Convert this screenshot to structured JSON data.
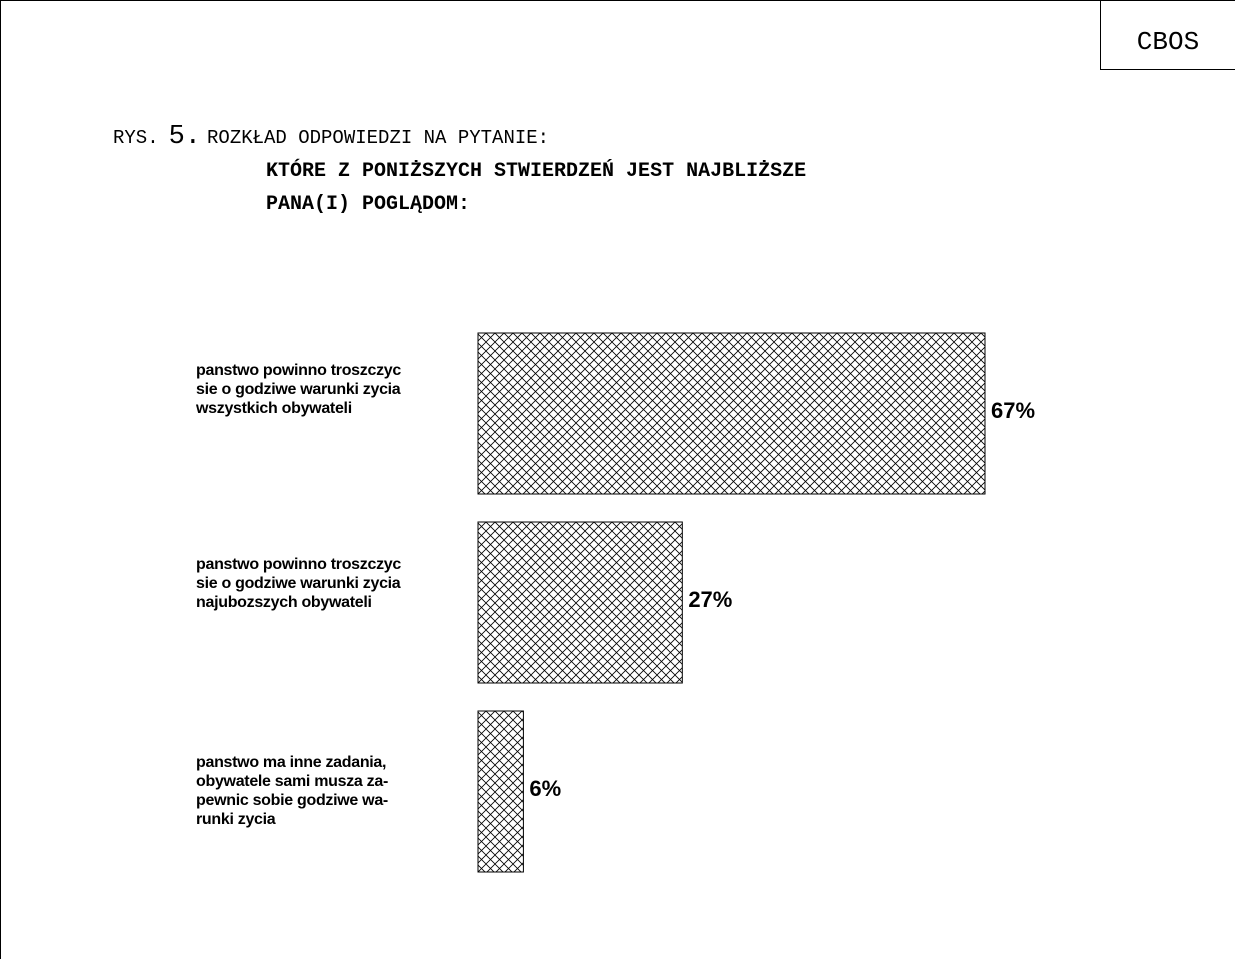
{
  "source_label": "CBOS",
  "figure": {
    "prefix": "RYS.",
    "number": "5.",
    "caption": "ROZKŁAD ODPOWIEDZI NA PYTANIE:",
    "question_line1": "KTÓRE Z PONIŻSZYCH STWIERDZEŃ JEST NAJBLIŻSZE",
    "question_line2": "PANA(I) POGLĄDOM:"
  },
  "chart_data": {
    "type": "bar",
    "orientation": "horizontal",
    "categories": [
      "panstwo powinno troszczyc\nsie o godziwe warunki zycia\nwszystkich obywateli",
      "panstwo powinno troszczyc\nsie o godziwe warunki zycia\nnajubozszych obywateli",
      "panstwo ma inne zadania,\nobywatele sami musza za-\npewnic sobie godziwe wa-\nrunki zycia"
    ],
    "values": [
      67,
      27,
      6
    ],
    "value_labels": [
      "67%",
      "27%",
      "6%"
    ],
    "unit": "%",
    "xlim": [
      0,
      100
    ],
    "fill_pattern": "crosshatch",
    "grid": false,
    "legend": "none"
  }
}
